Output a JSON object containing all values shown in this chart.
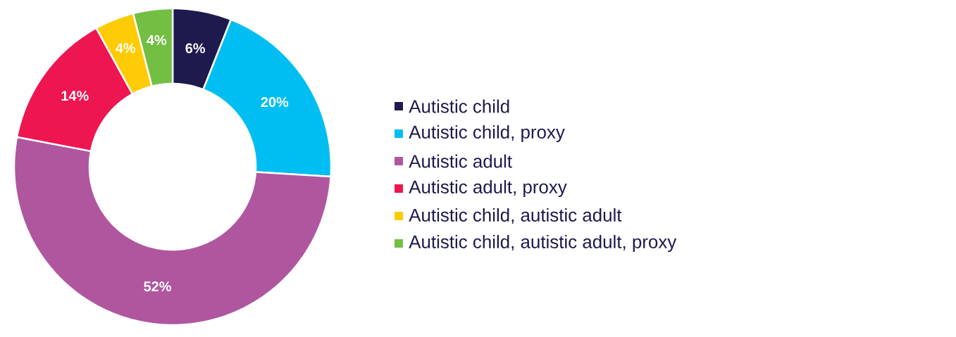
{
  "chart_data": {
    "type": "donut",
    "categories": [
      "Autistic child",
      "Autistic child, proxy",
      "Autistic adult",
      "Autistic adult, proxy",
      "Autistic child, autistic adult",
      "Autistic child, autistic adult, proxy"
    ],
    "values": [
      6,
      20,
      52,
      14,
      4,
      4
    ],
    "value_labels": [
      "6%",
      "20%",
      "52%",
      "14%",
      "4%",
      "4%"
    ],
    "colors": [
      "#1e1a4d",
      "#00bef2",
      "#b0569f",
      "#ee1651",
      "#ffcb05",
      "#72bf44"
    ],
    "legend": "right"
  }
}
